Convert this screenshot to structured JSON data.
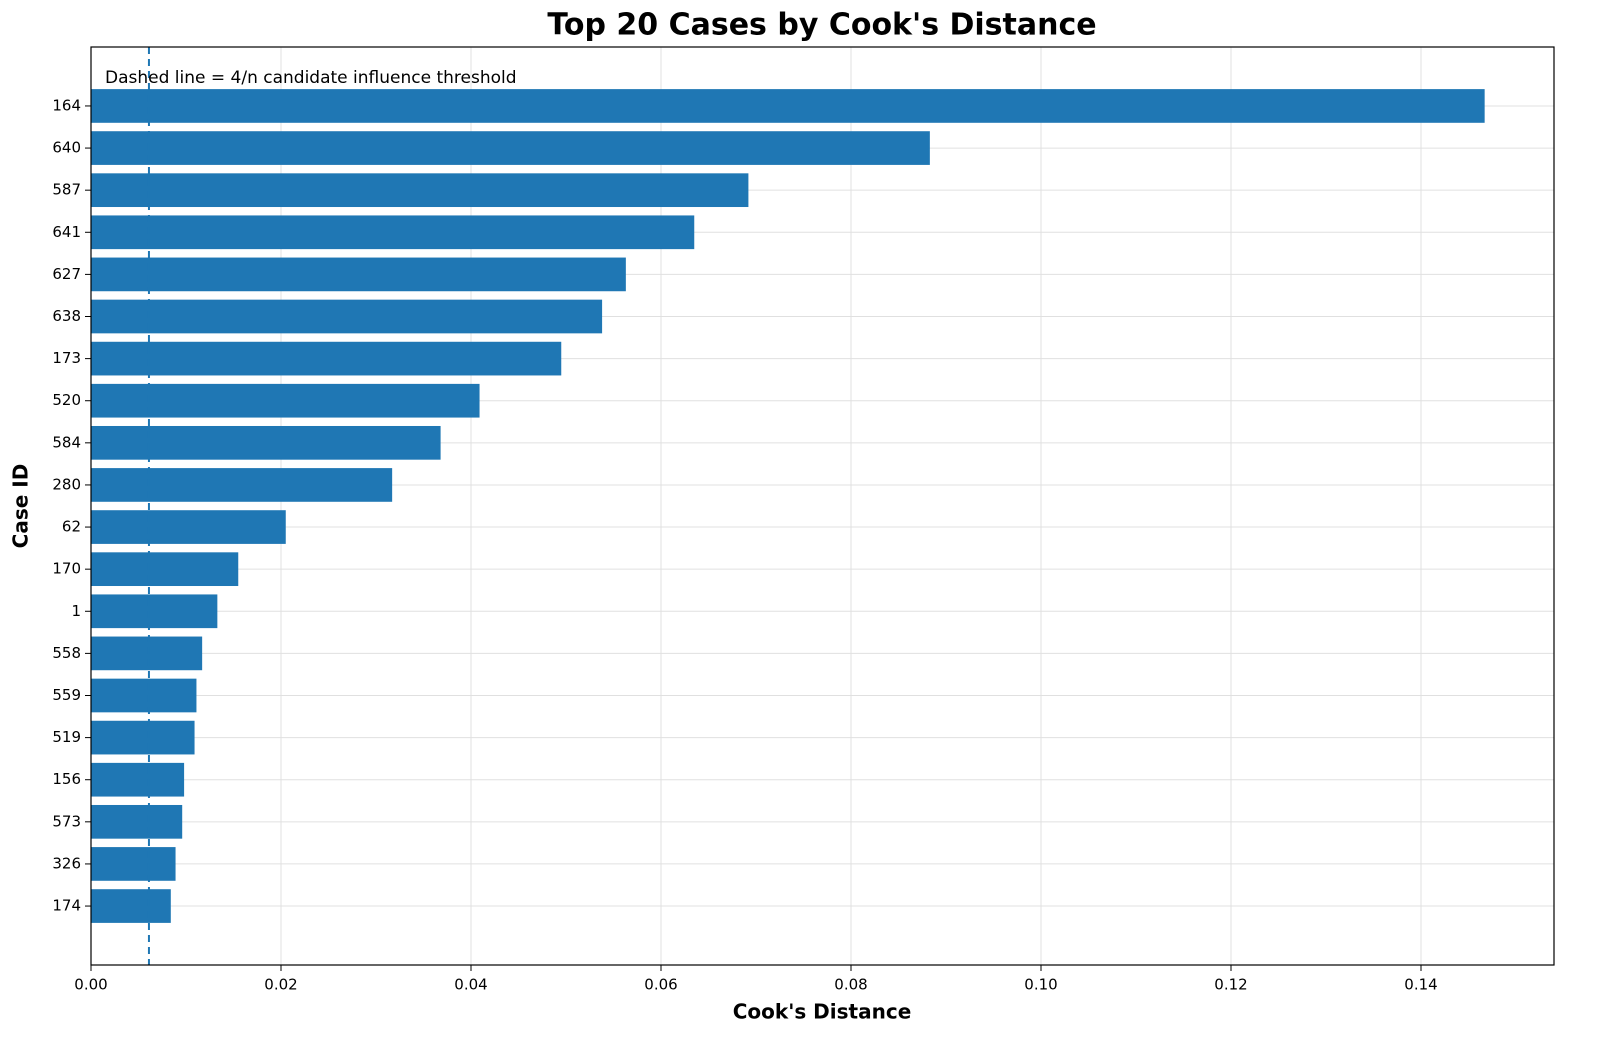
{
  "chart_data": {
    "type": "barh",
    "title": "Top 20 Cases by Cook's Distance",
    "xlabel": "Cook's Distance",
    "ylabel": "Case ID",
    "annotation": "Dashed line = 4/n candidate influence threshold",
    "threshold": 0.0061,
    "categories": [
      "164",
      "640",
      "587",
      "641",
      "627",
      "638",
      "173",
      "520",
      "584",
      "280",
      "62",
      "170",
      "1",
      "558",
      "559",
      "519",
      "156",
      "573",
      "326",
      "174"
    ],
    "values": [
      0.1467,
      0.0883,
      0.0692,
      0.0635,
      0.0563,
      0.0538,
      0.0495,
      0.0409,
      0.0368,
      0.0317,
      0.0205,
      0.0155,
      0.0133,
      0.0117,
      0.0111,
      0.0109,
      0.0098,
      0.0096,
      0.0089,
      0.0084
    ],
    "color": "#1f77b4",
    "xlim": [
      0,
      0.154
    ],
    "xticks": [
      {
        "value": 0,
        "label": "0.00"
      },
      {
        "value": 0.02,
        "label": "0.02"
      },
      {
        "value": 0.04,
        "label": "0.04"
      },
      {
        "value": 0.06,
        "label": "0.06"
      },
      {
        "value": 0.08,
        "label": "0.08"
      },
      {
        "value": 0.1,
        "label": "0.10"
      },
      {
        "value": 0.12,
        "label": "0.12"
      },
      {
        "value": 0.14,
        "label": "0.14"
      }
    ],
    "grid": true
  }
}
